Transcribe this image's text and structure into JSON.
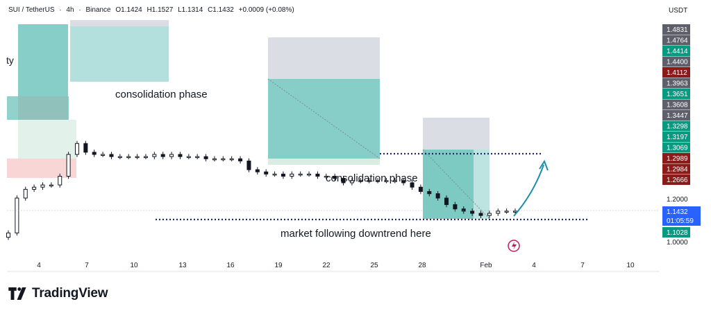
{
  "header": {
    "symbol": "SUI / TetherUS",
    "interval": "4h",
    "exchange": "Binance",
    "open": "O1.1424",
    "high": "H1.1527",
    "low": "L1.1314",
    "close": "C1.1432",
    "change": "+0.0009 (+0.08%)",
    "currency": "USDT"
  },
  "brand": {
    "name": "TradingView"
  },
  "partial_label": "ty",
  "annotations": {
    "consolidation_1": "consolidation phase",
    "consolidation_2": "consolidation phase",
    "downtrend": "market following downtrend here"
  },
  "colors": {
    "green_zone": "#26a69a",
    "gray_zone": "#d1d4dc",
    "red_zone": "#f7c5c5",
    "candle": "#131722",
    "arrow": "#1a8fa8",
    "dotted_line": "#1e2a5e",
    "price_green": "#089981",
    "price_red": "#8b1a1a",
    "price_gray": "#5d606b",
    "current_price": "#2962ff"
  },
  "chart_data": {
    "type": "candlestick",
    "xlabel": "",
    "ylabel": "",
    "x_ticks": [
      "4",
      "7",
      "10",
      "13",
      "16",
      "19",
      "22",
      "25",
      "28",
      "Feb",
      "4",
      "7",
      "10"
    ],
    "y_ticks": [
      "1.2000",
      "1.0000"
    ],
    "price_labels": [
      {
        "value": "1.4831",
        "style": "gray"
      },
      {
        "value": "1.4764",
        "style": "gray"
      },
      {
        "value": "1.4414",
        "style": "green"
      },
      {
        "value": "1.4400",
        "style": "gray"
      },
      {
        "value": "1.4112",
        "style": "red"
      },
      {
        "value": "1.3963",
        "style": "gray"
      },
      {
        "value": "1.3651",
        "style": "green"
      },
      {
        "value": "1.3608",
        "style": "gray"
      },
      {
        "value": "1.3447",
        "style": "gray"
      },
      {
        "value": "1.3298",
        "style": "green"
      },
      {
        "value": "1.3197",
        "style": "green"
      },
      {
        "value": "1.3069",
        "style": "green"
      },
      {
        "value": "1.2989",
        "style": "red"
      },
      {
        "value": "1.2984",
        "style": "red"
      },
      {
        "value": "1.2666",
        "style": "red"
      }
    ],
    "current_price": {
      "value": "1.1432",
      "countdown": "01:05:59"
    },
    "low_label": {
      "value": "1.1028",
      "style": "green"
    },
    "series": [
      {
        "name": "SUI/USDT close",
        "values": [
          1.04,
          1.2,
          1.24,
          1.25,
          1.26,
          1.26,
          1.3,
          1.4,
          1.45,
          1.41,
          1.4,
          1.4,
          1.39,
          1.39,
          1.39,
          1.39,
          1.39,
          1.4,
          1.39,
          1.4,
          1.39,
          1.39,
          1.39,
          1.38,
          1.38,
          1.38,
          1.38,
          1.37,
          1.33,
          1.32,
          1.31,
          1.31,
          1.3,
          1.31,
          1.31,
          1.31,
          1.3,
          1.3,
          1.29,
          1.27,
          1.28,
          1.28,
          1.28,
          1.28,
          1.28,
          1.28,
          1.27,
          1.25,
          1.23,
          1.22,
          1.2,
          1.17,
          1.15,
          1.14,
          1.13,
          1.12,
          1.13,
          1.14,
          1.14,
          1.14
        ]
      }
    ]
  }
}
